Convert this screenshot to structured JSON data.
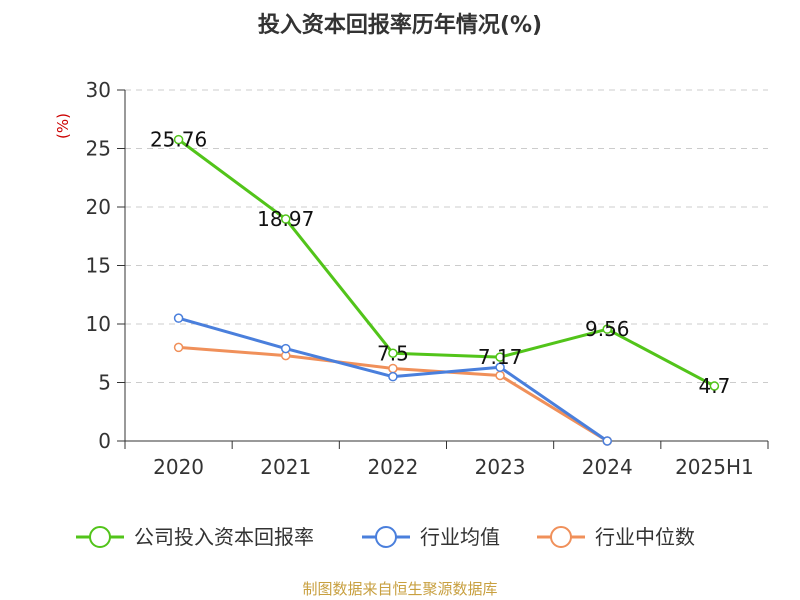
{
  "chart_data": {
    "type": "line",
    "title": "投入资本回报率历年情况(%)",
    "ylabel": "(%)",
    "ylim": [
      0,
      30
    ],
    "yticks": [
      0,
      5,
      10,
      15,
      20,
      25,
      30
    ],
    "categories": [
      "2020",
      "2021",
      "2022",
      "2023",
      "2024",
      "2025H1"
    ],
    "grid": true,
    "legend_position": "bottom",
    "series": [
      {
        "name": "公司投入资本回报率",
        "color": "#52c41a",
        "values": [
          25.76,
          18.97,
          7.5,
          7.17,
          9.56,
          4.7
        ],
        "labels": [
          "25.76",
          "18.97",
          "7.5",
          "7.17",
          "9.56",
          "4.7"
        ]
      },
      {
        "name": "行业均值",
        "color": "#4a7fdc",
        "values": [
          10.5,
          7.9,
          5.5,
          6.3,
          0.0,
          null
        ]
      },
      {
        "name": "行业中位数",
        "color": "#f0905a",
        "values": [
          8.0,
          7.3,
          6.2,
          5.6,
          0.0,
          null
        ]
      }
    ]
  },
  "source": "制图数据来自恒生聚源数据库",
  "colors": {
    "axis": "#333333",
    "grid": "#cccccc",
    "ylabel": "#cc0000",
    "source": "#c8a040"
  }
}
